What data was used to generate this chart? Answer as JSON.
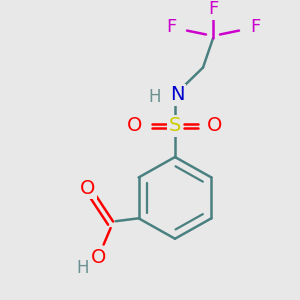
{
  "bg_color": "#e8e8e8",
  "bond_color": "#4a8080",
  "bond_width": 1.8,
  "atom_colors": {
    "C": "#4a8080",
    "H": "#6a9090",
    "N": "#0000cc",
    "O": "#ff0000",
    "S": "#cccc00",
    "F": "#cc00cc"
  },
  "figsize": [
    3.0,
    3.0
  ],
  "dpi": 100
}
